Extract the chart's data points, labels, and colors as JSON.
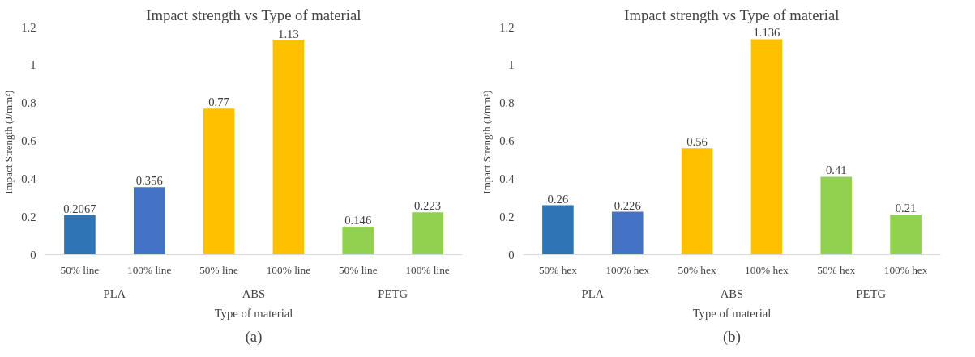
{
  "chart_data": [
    {
      "type": "bar",
      "title": "Impact strength vs Type of material",
      "xlabel": "Type of material",
      "ylabel": "Impact Strength  (J/mm²)",
      "categories": [
        "50% line",
        "100% line",
        "50% line",
        "100% line",
        "50% line",
        "100% line"
      ],
      "values": [
        0.2067,
        0.356,
        0.77,
        1.13,
        0.146,
        0.223
      ],
      "colors": [
        "#2e75b6",
        "#4472c4",
        "#ffc000",
        "#ffc000",
        "#92d050",
        "#92d050"
      ],
      "ylim": [
        0,
        1.2
      ],
      "yticks": [
        0,
        0.2,
        0.4,
        0.6,
        0.8,
        1,
        1.2
      ],
      "data_labels": true,
      "grid": false,
      "annotations": [
        "PLA",
        "ABS",
        "PETG",
        "(a)"
      ]
    },
    {
      "type": "bar",
      "title": "Impact strength vs Type of material",
      "xlabel": "Type of material",
      "ylabel": "Impact Strength  (J/mm²)",
      "categories": [
        "50% hex",
        "100% hex",
        "50% hex",
        "100% hex",
        "50% hex",
        "100% hex"
      ],
      "values": [
        0.26,
        0.226,
        0.56,
        1.136,
        0.41,
        0.21
      ],
      "colors": [
        "#2e75b6",
        "#4472c4",
        "#ffc000",
        "#ffc000",
        "#92d050",
        "#92d050"
      ],
      "ylim": [
        0,
        1.2
      ],
      "yticks": [
        0,
        0.2,
        0.4,
        0.6,
        0.8,
        1,
        1.2
      ],
      "data_labels": true,
      "grid": false,
      "annotations": [
        "PLA",
        "ABS",
        "PETG",
        "(b)"
      ]
    }
  ]
}
